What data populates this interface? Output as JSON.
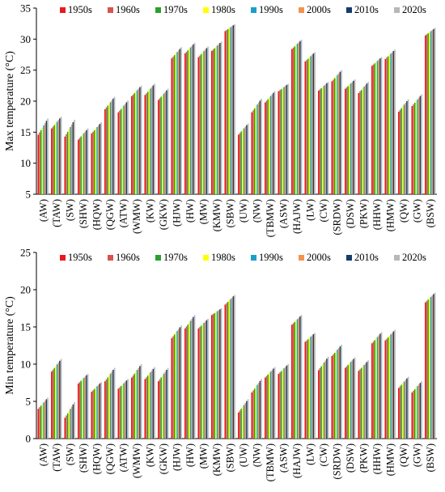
{
  "legend": [
    "1950s",
    "1960s",
    "1970s",
    "1980s",
    "1990s",
    "2000s",
    "2010s",
    "2020s"
  ],
  "colors": [
    "#e8191c",
    "#d9534f",
    "#2ca02c",
    "#ffff00",
    "#1aa0c8",
    "#f4934f",
    "#143d6b",
    "#b8b8b8"
  ],
  "categories": [
    "(AW)",
    "(TAW)",
    "(SW)",
    "(SHW)",
    "(HQW)",
    "(QGW)",
    "(ATW)",
    "(WMW)",
    "(KW)",
    "(GKW)",
    "(HJW)",
    "(HW)",
    "(MW)",
    "(KMW)",
    "(SBW)",
    "(UW)",
    "(NW)",
    "(TBMW)",
    "(ASW)",
    "(HAJW)",
    "(LW)",
    "(CW)",
    "(SRDW)",
    "(DSW)",
    "(PKW)",
    "(HHW)",
    "(HMW)",
    "(QW)",
    "(GW)",
    "(BSW)"
  ],
  "chart_data": [
    {
      "type": "bar",
      "ylabel": "Max temperature (°C)",
      "ylim": [
        5,
        35
      ],
      "yticks": [
        5,
        10,
        15,
        20,
        25,
        30,
        35
      ],
      "series_start": [
        14.6,
        15.6,
        14.3,
        13.8,
        14.8,
        18.7,
        18.2,
        20.8,
        21.0,
        20.2,
        26.9,
        27.7,
        27.1,
        28.1,
        31.3,
        14.6,
        18.2,
        19.8,
        21.6,
        28.4,
        26.4,
        21.7,
        23.2,
        22.0,
        21.3,
        25.7,
        26.8,
        18.3,
        19.2,
        30.6
      ],
      "series_end": [
        17.2,
        17.5,
        17.0,
        15.6,
        16.6,
        20.7,
        20.1,
        22.5,
        22.8,
        22.0,
        28.7,
        29.4,
        28.8,
        29.6,
        32.4,
        16.4,
        20.4,
        21.6,
        22.8,
        29.9,
        27.9,
        23.1,
        25.0,
        23.5,
        23.1,
        27.1,
        28.3,
        20.3,
        21.1,
        31.8
      ]
    },
    {
      "type": "bar",
      "ylabel": "Min temperature (°C)",
      "ylim": [
        0,
        25
      ],
      "yticks": [
        0,
        5,
        10,
        15,
        20,
        25
      ],
      "series_start": [
        4.0,
        9.0,
        2.8,
        7.4,
        6.3,
        7.7,
        6.7,
        8.2,
        8.0,
        7.7,
        13.5,
        14.8,
        14.8,
        16.6,
        18.0,
        3.5,
        6.2,
        8.2,
        8.7,
        15.3,
        13.0,
        9.2,
        11.1,
        9.5,
        9.1,
        12.8,
        13.2,
        6.8,
        6.2,
        18.3
      ],
      "series_end": [
        5.5,
        10.7,
        4.9,
        8.7,
        7.6,
        9.5,
        8.0,
        10.0,
        9.6,
        9.5,
        15.2,
        16.6,
        16.1,
        17.5,
        19.3,
        5.3,
        8.0,
        9.6,
        10.0,
        16.6,
        14.2,
        11.0,
        12.6,
        10.9,
        10.5,
        14.3,
        14.6,
        8.3,
        7.7,
        19.6
      ]
    }
  ]
}
